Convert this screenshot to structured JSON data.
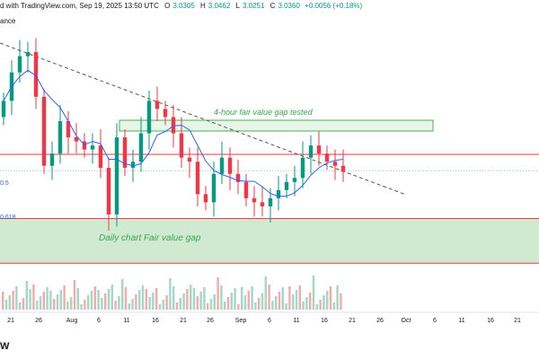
{
  "header": {
    "line1": "d with TradingView.com, Sep 19, 2025 13:50 UTC",
    "open_label": "O",
    "open": "3.0305",
    "high_label": "H",
    "high": "3.0462",
    "low_label": "L",
    "low": "3.0251",
    "close_label": "C",
    "close": "3.0360",
    "change": "+0.0056 (+0.18%)",
    "line2": "ance"
  },
  "brand": "W",
  "colors": {
    "up": "#089981",
    "down": "#f23645",
    "ma": "#2962ff",
    "fvg_fill": "#c8e6c9",
    "fvg_border_red": "#f23645",
    "fvg_border_green": "#4caf50",
    "trendline": "#555555",
    "annotation": "#3aa655"
  },
  "chart_data": {
    "type": "candlestick",
    "title": "",
    "xlabel": "",
    "ylabel": "",
    "x_ticks": [
      "21",
      "26",
      "Aug",
      "6",
      "11",
      "16",
      "21",
      "26",
      "Sep",
      "6",
      "11",
      "16",
      "21",
      "26",
      "Oct",
      "6",
      "11",
      "16",
      "21"
    ],
    "annotations": [
      {
        "text": "4-hour fair value gap tested",
        "type": "box"
      },
      {
        "text": "Daily chart Fair value gap",
        "type": "zone"
      }
    ],
    "fib_labels": [
      "0.5",
      "0.618"
    ],
    "candles_approx_close": [
      3.38,
      3.52,
      3.6,
      3.62,
      3.4,
      3.06,
      3.12,
      3.28,
      3.2,
      3.18,
      3.14,
      3.16,
      3.05,
      2.82,
      3.2,
      3.05,
      3.08,
      3.22,
      3.38,
      3.34,
      3.3,
      3.22,
      3.1,
      3.08,
      2.92,
      2.88,
      3.02,
      3.1,
      3.02,
      2.98,
      2.9,
      2.88,
      2.86,
      2.9,
      2.94,
      2.98,
      3.0,
      3.1,
      3.16,
      3.12,
      3.08,
      3.06,
      3.03
    ],
    "fvg_daily": {
      "top": 2.8,
      "bottom": 2.58
    },
    "fvg_4h": {
      "top": 3.15,
      "bottom": 3.12
    },
    "current_price": 3.036
  }
}
